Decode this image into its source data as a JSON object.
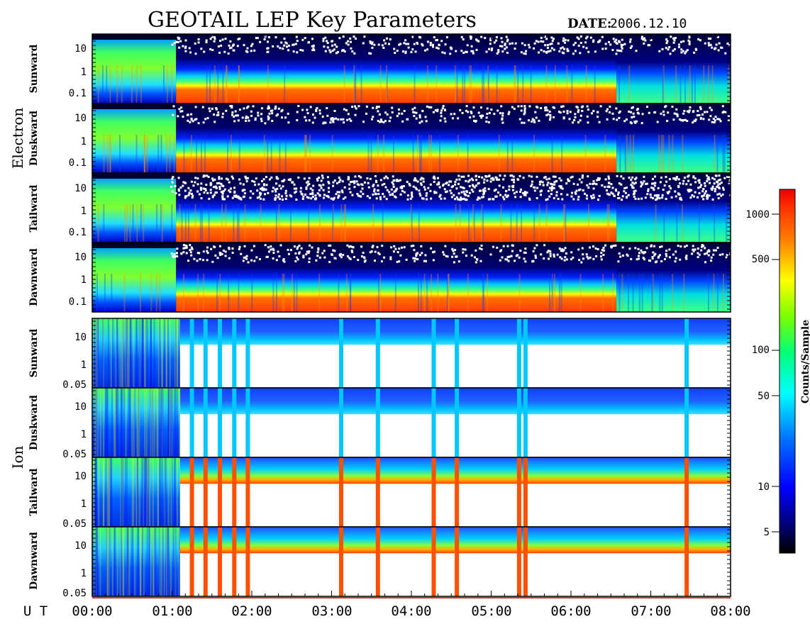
{
  "header": {
    "title": "GEOTAIL LEP Key Parameters",
    "date_label": "DATE:",
    "date_value": "2006.12.10"
  },
  "groups": [
    {
      "name": "Electron",
      "panels": [
        "Sunward",
        "Duskward",
        "Tailward",
        "Dawnward"
      ]
    },
    {
      "name": "Ion",
      "panels": [
        "Sunward",
        "Duskward",
        "Tailward",
        "Dawnward"
      ]
    }
  ],
  "time_axis": {
    "label": "U T",
    "ticks": [
      "00:00",
      "01:00",
      "02:00",
      "03:00",
      "04:00",
      "05:00",
      "06:00",
      "07:00",
      "08:00"
    ]
  },
  "colorbar": {
    "label": "Counts/Sample",
    "ticks": [
      "1000",
      "500",
      "100",
      "50",
      "10",
      "5"
    ],
    "colors": [
      "#000000",
      "#00007a",
      "#0000ff",
      "#0078ff",
      "#00ffff",
      "#00ff78",
      "#78ff00",
      "#ffff00",
      "#ff8000",
      "#ff3000",
      "#e80000"
    ]
  },
  "chart_data": {
    "type": "heatmap",
    "title": "GEOTAIL LEP Key Parameters",
    "date": "2006.12.10",
    "x_axis": {
      "label": "U T",
      "range_hours": [
        0,
        8
      ]
    },
    "z_axis": {
      "label": "Counts/Sample",
      "scale": "log",
      "range": [
        3,
        1500
      ]
    },
    "electron_y_ticks": [
      "10",
      "1",
      "0.1"
    ],
    "ion_y_ticks": [
      "10",
      "1",
      "0.05"
    ],
    "y_scale": "log",
    "panels": [
      {
        "group": "Electron",
        "direction": "Sunward"
      },
      {
        "group": "Electron",
        "direction": "Duskward"
      },
      {
        "group": "Electron",
        "direction": "Tailward"
      },
      {
        "group": "Electron",
        "direction": "Dawnward"
      },
      {
        "group": "Ion",
        "direction": "Sunward"
      },
      {
        "group": "Ion",
        "direction": "Duskward"
      },
      {
        "group": "Ion",
        "direction": "Tailward"
      },
      {
        "group": "Ion",
        "direction": "Dawnward"
      }
    ],
    "electron_dense_start_hour": 1.05,
    "electron_dense_end_hour": 6.57,
    "ion_gap_start_hour": 1.1,
    "ion_gap_end_hour": 8.0,
    "ion_spikes_hours": [
      1.25,
      1.42,
      1.6,
      1.78,
      1.95,
      3.12,
      3.58,
      4.28,
      4.57,
      5.35,
      5.43,
      7.45
    ]
  }
}
